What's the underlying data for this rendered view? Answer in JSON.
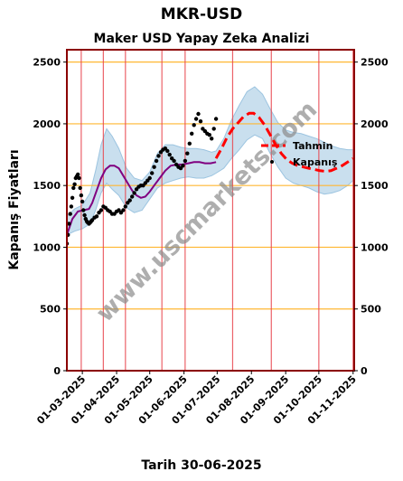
{
  "header": {
    "title": "MKR-USD",
    "subtitle": "Maker USD Yapay Zeka Analizi",
    "xlabel": "Tarih 30-06-2025",
    "ylabel": "Kapanış Fiyatları",
    "watermark": "www.uscmarkets.com"
  },
  "legend": {
    "forecast": "Tahmin",
    "close": "Kapanış",
    "placement": "right"
  },
  "colors": {
    "frame": "#8b0000",
    "grid_h": "#ffb732",
    "grid_v": "#e8474f",
    "band": "#9cc4e0",
    "ma": "#800080",
    "forecast": "#ff0000",
    "close": "#000000"
  },
  "chart_data": {
    "type": "line",
    "title": "Maker USD Yapay Zeka Analizi",
    "xlabel": "Tarih 30-06-2025",
    "ylabel": "Kapanış Fiyatları",
    "x_range": [
      "2025-02-15",
      "2025-11-02"
    ],
    "ylim": [
      0,
      2600
    ],
    "y_ticks": [
      0,
      500,
      1000,
      1500,
      2000,
      2500
    ],
    "x_ticks": [
      "01-03-2025",
      "01-04-2025",
      "01-05-2025",
      "01-06-2025",
      "01-07-2025",
      "01-08-2025",
      "01-09-2025",
      "01-10-2025",
      "01-11-2025"
    ],
    "grid": true,
    "series": [
      {
        "name": "Kapanış",
        "style": "scatter",
        "points": [
          [
            "2025-02-15",
            1030
          ],
          [
            "2025-02-16",
            1100
          ],
          [
            "2025-02-17",
            1190
          ],
          [
            "2025-02-18",
            1270
          ],
          [
            "2025-02-19",
            1330
          ],
          [
            "2025-02-20",
            1400
          ],
          [
            "2025-02-21",
            1480
          ],
          [
            "2025-02-22",
            1510
          ],
          [
            "2025-02-23",
            1560
          ],
          [
            "2025-02-24",
            1575
          ],
          [
            "2025-02-25",
            1590
          ],
          [
            "2025-02-26",
            1560
          ],
          [
            "2025-02-27",
            1480
          ],
          [
            "2025-02-28",
            1420
          ],
          [
            "2025-03-01",
            1370
          ],
          [
            "2025-03-02",
            1300
          ],
          [
            "2025-03-03",
            1260
          ],
          [
            "2025-03-04",
            1230
          ],
          [
            "2025-03-05",
            1210
          ],
          [
            "2025-03-06",
            1200
          ],
          [
            "2025-03-07",
            1190
          ],
          [
            "2025-03-08",
            1200
          ],
          [
            "2025-03-09",
            1210
          ],
          [
            "2025-03-10",
            1220
          ],
          [
            "2025-03-12",
            1240
          ],
          [
            "2025-03-14",
            1250
          ],
          [
            "2025-03-16",
            1280
          ],
          [
            "2025-03-18",
            1300
          ],
          [
            "2025-03-20",
            1330
          ],
          [
            "2025-03-22",
            1320
          ],
          [
            "2025-03-24",
            1300
          ],
          [
            "2025-03-26",
            1290
          ],
          [
            "2025-03-28",
            1270
          ],
          [
            "2025-03-30",
            1270
          ],
          [
            "2025-04-01",
            1290
          ],
          [
            "2025-04-03",
            1300
          ],
          [
            "2025-04-05",
            1280
          ],
          [
            "2025-04-07",
            1300
          ],
          [
            "2025-04-09",
            1330
          ],
          [
            "2025-04-11",
            1360
          ],
          [
            "2025-04-13",
            1380
          ],
          [
            "2025-04-15",
            1410
          ],
          [
            "2025-04-17",
            1440
          ],
          [
            "2025-04-19",
            1470
          ],
          [
            "2025-04-21",
            1490
          ],
          [
            "2025-04-23",
            1500
          ],
          [
            "2025-04-25",
            1500
          ],
          [
            "2025-04-27",
            1520
          ],
          [
            "2025-04-29",
            1540
          ],
          [
            "2025-05-01",
            1560
          ],
          [
            "2025-05-03",
            1600
          ],
          [
            "2025-05-05",
            1650
          ],
          [
            "2025-05-07",
            1700
          ],
          [
            "2025-05-09",
            1740
          ],
          [
            "2025-05-11",
            1770
          ],
          [
            "2025-05-13",
            1790
          ],
          [
            "2025-05-15",
            1800
          ],
          [
            "2025-05-17",
            1780
          ],
          [
            "2025-05-19",
            1750
          ],
          [
            "2025-05-21",
            1720
          ],
          [
            "2025-05-23",
            1700
          ],
          [
            "2025-05-25",
            1670
          ],
          [
            "2025-05-27",
            1650
          ],
          [
            "2025-05-29",
            1640
          ],
          [
            "2025-05-31",
            1660
          ],
          [
            "2025-06-02",
            1700
          ],
          [
            "2025-06-04",
            1760
          ],
          [
            "2025-06-06",
            1840
          ],
          [
            "2025-06-08",
            1920
          ],
          [
            "2025-06-10",
            1990
          ],
          [
            "2025-06-12",
            2040
          ],
          [
            "2025-06-14",
            2080
          ],
          [
            "2025-06-16",
            2020
          ],
          [
            "2025-06-18",
            1960
          ],
          [
            "2025-06-20",
            1940
          ],
          [
            "2025-06-22",
            1920
          ],
          [
            "2025-06-24",
            1910
          ],
          [
            "2025-06-26",
            1880
          ],
          [
            "2025-06-28",
            1960
          ],
          [
            "2025-06-30",
            2040
          ]
        ]
      },
      {
        "name": "Tahmin",
        "style": "dashed",
        "points": [
          [
            "2025-06-30",
            1720
          ],
          [
            "2025-07-05",
            1800
          ],
          [
            "2025-07-10",
            1890
          ],
          [
            "2025-07-15",
            1960
          ],
          [
            "2025-07-20",
            2010
          ],
          [
            "2025-07-25",
            2060
          ],
          [
            "2025-07-30",
            2085
          ],
          [
            "2025-08-03",
            2085
          ],
          [
            "2025-08-08",
            2050
          ],
          [
            "2025-08-13",
            1990
          ],
          [
            "2025-08-18",
            1910
          ],
          [
            "2025-08-23",
            1830
          ],
          [
            "2025-08-28",
            1760
          ],
          [
            "2025-09-02",
            1710
          ],
          [
            "2025-09-07",
            1680
          ],
          [
            "2025-09-12",
            1660
          ],
          [
            "2025-09-17",
            1650
          ],
          [
            "2025-09-22",
            1640
          ],
          [
            "2025-09-27",
            1630
          ],
          [
            "2025-10-02",
            1620
          ],
          [
            "2025-10-07",
            1615
          ],
          [
            "2025-10-12",
            1620
          ],
          [
            "2025-10-17",
            1640
          ],
          [
            "2025-10-22",
            1660
          ],
          [
            "2025-10-27",
            1690
          ],
          [
            "2025-11-01",
            1720
          ]
        ]
      },
      {
        "role": "moving_average",
        "style": "solid",
        "points": [
          [
            "2025-02-15",
            1100
          ],
          [
            "2025-02-20",
            1230
          ],
          [
            "2025-02-25",
            1290
          ],
          [
            "2025-03-02",
            1300
          ],
          [
            "2025-03-07",
            1310
          ],
          [
            "2025-03-10",
            1360
          ],
          [
            "2025-03-14",
            1460
          ],
          [
            "2025-03-18",
            1560
          ],
          [
            "2025-03-22",
            1630
          ],
          [
            "2025-03-26",
            1660
          ],
          [
            "2025-03-30",
            1660
          ],
          [
            "2025-04-03",
            1640
          ],
          [
            "2025-04-07",
            1580
          ],
          [
            "2025-04-11",
            1520
          ],
          [
            "2025-04-15",
            1460
          ],
          [
            "2025-04-19",
            1420
          ],
          [
            "2025-04-23",
            1400
          ],
          [
            "2025-04-27",
            1410
          ],
          [
            "2025-05-01",
            1450
          ],
          [
            "2025-05-05",
            1500
          ],
          [
            "2025-05-10",
            1560
          ],
          [
            "2025-05-15",
            1620
          ],
          [
            "2025-05-20",
            1660
          ],
          [
            "2025-05-25",
            1670
          ],
          [
            "2025-05-30",
            1670
          ],
          [
            "2025-06-05",
            1680
          ],
          [
            "2025-06-10",
            1690
          ],
          [
            "2025-06-15",
            1690
          ],
          [
            "2025-06-20",
            1680
          ],
          [
            "2025-06-25",
            1680
          ],
          [
            "2025-06-30",
            1690
          ]
        ]
      },
      {
        "role": "confidence_band",
        "style": "area",
        "points": [
          [
            "2025-02-15",
            1100,
            1250
          ],
          [
            "2025-02-22",
            1130,
            1310
          ],
          [
            "2025-03-01",
            1150,
            1340
          ],
          [
            "2025-03-08",
            1190,
            1440
          ],
          [
            "2025-03-13",
            1300,
            1620
          ],
          [
            "2025-03-18",
            1440,
            1830
          ],
          [
            "2025-03-23",
            1520,
            1960
          ],
          [
            "2025-03-28",
            1470,
            1900
          ],
          [
            "2025-04-03",
            1420,
            1800
          ],
          [
            "2025-04-10",
            1320,
            1640
          ],
          [
            "2025-04-17",
            1280,
            1560
          ],
          [
            "2025-04-24",
            1300,
            1540
          ],
          [
            "2025-05-01",
            1390,
            1610
          ],
          [
            "2025-05-08",
            1480,
            1760
          ],
          [
            "2025-05-15",
            1520,
            1830
          ],
          [
            "2025-05-22",
            1540,
            1830
          ],
          [
            "2025-05-29",
            1560,
            1810
          ],
          [
            "2025-06-05",
            1570,
            1800
          ],
          [
            "2025-06-12",
            1560,
            1800
          ],
          [
            "2025-06-19",
            1560,
            1790
          ],
          [
            "2025-06-26",
            1580,
            1770
          ],
          [
            "2025-06-30",
            1600,
            1780
          ],
          [
            "2025-07-07",
            1640,
            1880
          ],
          [
            "2025-07-14",
            1720,
            2030
          ],
          [
            "2025-07-21",
            1790,
            2150
          ],
          [
            "2025-07-28",
            1870,
            2260
          ],
          [
            "2025-08-04",
            1910,
            2300
          ],
          [
            "2025-08-11",
            1880,
            2240
          ],
          [
            "2025-08-18",
            1760,
            2120
          ],
          [
            "2025-08-25",
            1650,
            2010
          ],
          [
            "2025-09-01",
            1560,
            1950
          ],
          [
            "2025-09-08",
            1520,
            1930
          ],
          [
            "2025-09-15",
            1500,
            1920
          ],
          [
            "2025-09-22",
            1480,
            1900
          ],
          [
            "2025-09-29",
            1450,
            1880
          ],
          [
            "2025-10-06",
            1430,
            1850
          ],
          [
            "2025-10-13",
            1440,
            1820
          ],
          [
            "2025-10-20",
            1460,
            1800
          ],
          [
            "2025-10-27",
            1500,
            1790
          ],
          [
            "2025-11-02",
            1550,
            1790
          ]
        ]
      }
    ],
    "vertical_lines": [
      "2025-02-28",
      "2025-03-20",
      "2025-04-09",
      "2025-05-12",
      "2025-06-02",
      "2025-07-15",
      "2025-08-19",
      "2025-10-01",
      "2025-11-01"
    ]
  }
}
